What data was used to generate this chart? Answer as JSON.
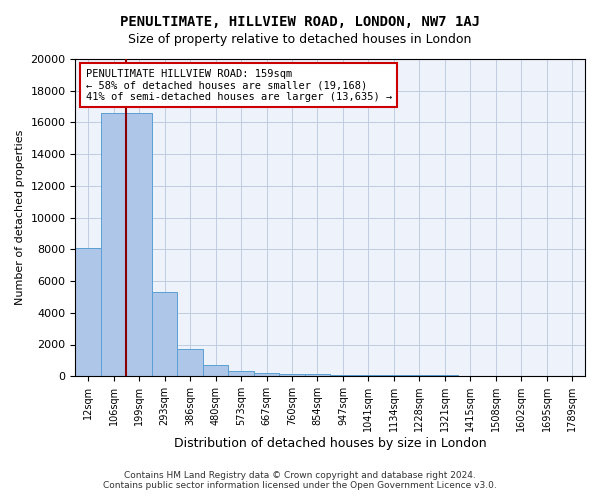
{
  "title": "PENULTIMATE, HILLVIEW ROAD, LONDON, NW7 1AJ",
  "subtitle": "Size of property relative to detached houses in London",
  "xlabel": "Distribution of detached houses by size in London",
  "ylabel": "Number of detached properties",
  "bar_values": [
    8100,
    16600,
    16600,
    5300,
    1700,
    700,
    350,
    230,
    150,
    130,
    100,
    80,
    70,
    60,
    50,
    45,
    40,
    35,
    30,
    25
  ],
  "bar_labels": [
    "12sqm",
    "106sqm",
    "199sqm",
    "293sqm",
    "386sqm",
    "480sqm",
    "573sqm",
    "667sqm",
    "760sqm",
    "854sqm",
    "947sqm",
    "1041sqm",
    "1134sqm",
    "1228sqm",
    "1321sqm",
    "1415sqm",
    "1508sqm",
    "1602sqm",
    "1695sqm",
    "1789sqm"
  ],
  "bar_color": "#aec6e8",
  "bar_edge_color": "#5a9fd4",
  "vline_color": "#8b0000",
  "annotation_line1": "PENULTIMATE HILLVIEW ROAD: 159sqm",
  "annotation_line2": "← 58% of detached houses are smaller (19,168)",
  "annotation_line3": "41% of semi-detached houses are larger (13,635) →",
  "annotation_box_color": "#ffffff",
  "annotation_box_edge": "#cc0000",
  "ylim": [
    0,
    20000
  ],
  "yticks": [
    0,
    2000,
    4000,
    6000,
    8000,
    10000,
    12000,
    14000,
    16000,
    18000,
    20000
  ],
  "footer_line1": "Contains HM Land Registry data © Crown copyright and database right 2024.",
  "footer_line2": "Contains public sector information licensed under the Open Government Licence v3.0.",
  "bg_color": "#eef2fa",
  "grid_color": "#c0cce0"
}
